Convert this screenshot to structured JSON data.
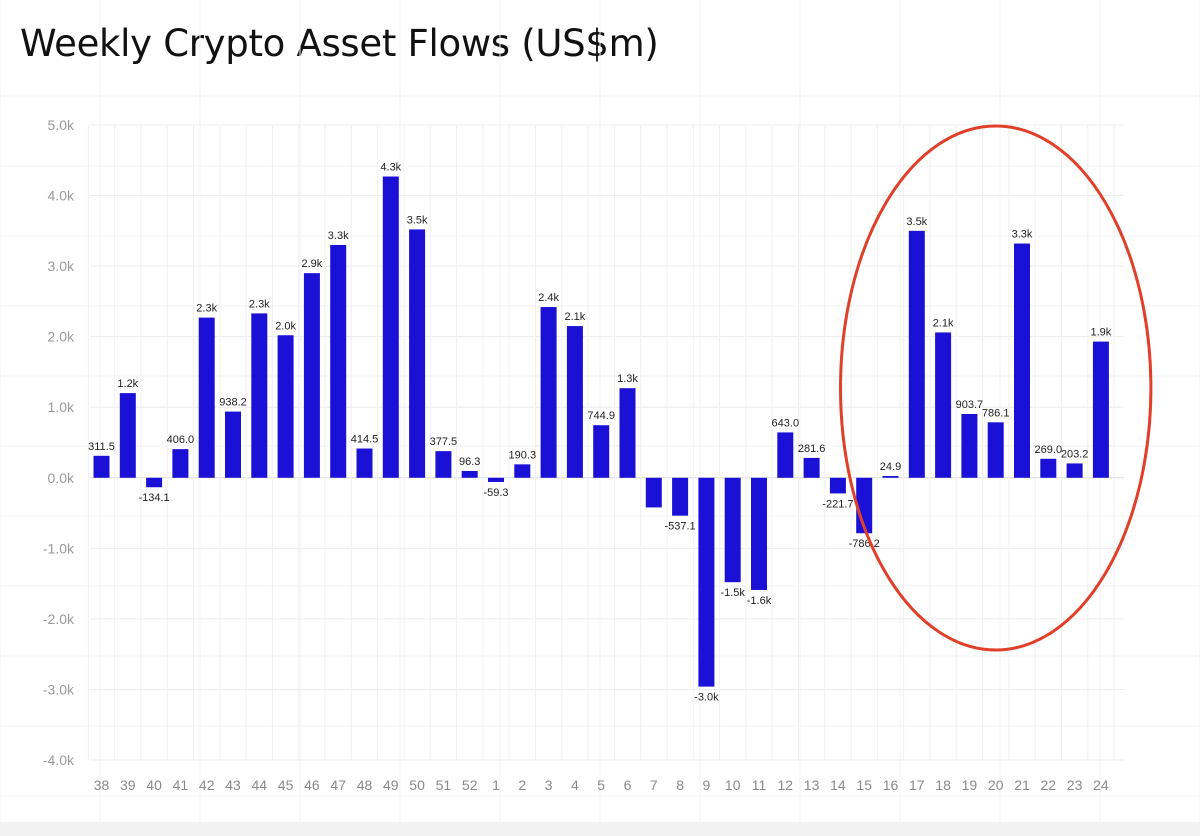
{
  "chart_data": {
    "type": "bar",
    "title": "Weekly Crypto Asset Flows (US$m)",
    "xlabel": "",
    "ylabel": "",
    "ylim": [
      -4000,
      5000
    ],
    "grid": true,
    "legend": "none",
    "bar_color": "#1a10d6",
    "annotation_color": "#e0402a",
    "categories": [
      "38",
      "39",
      "40",
      "41",
      "42",
      "43",
      "44",
      "45",
      "46",
      "47",
      "48",
      "49",
      "50",
      "51",
      "52",
      "1",
      "2",
      "3",
      "4",
      "5",
      "6",
      "7",
      "8",
      "9",
      "10",
      "11",
      "12",
      "13",
      "14",
      "15",
      "16",
      "17",
      "18",
      "19",
      "20",
      "21",
      "22",
      "23",
      "24"
    ],
    "values": [
      311.5,
      1200,
      -134.1,
      406.0,
      2270,
      938.2,
      2330,
      2020,
      2900,
      3300,
      414.5,
      4270,
      3520,
      377.5,
      96.3,
      -59.3,
      190.3,
      2420,
      2150,
      744.9,
      1270,
      -420,
      -537.1,
      -2960,
      -1480,
      -1590,
      643.0,
      281.6,
      -221.7,
      -786.2,
      24.9,
      3500,
      2060,
      903.7,
      786.1,
      3320,
      269.0,
      203.2,
      1930
    ],
    "data_labels": [
      "311.5",
      "1.2k",
      "-134.1",
      "406.0",
      "2.3k",
      "938.2",
      "2.3k",
      "2.0k",
      "2.9k",
      "3.3k",
      "414.5",
      "4.3k",
      "3.5k",
      "377.5",
      "96.3",
      "-59.3",
      "190.3",
      "2.4k",
      "2.1k",
      "744.9",
      "1.3k",
      "",
      "-537.1",
      "-3.0k",
      "-1.5k",
      "-1.6k",
      "643.0",
      "281.6",
      "-221.7",
      "-786.2",
      "24.9",
      "3.5k",
      "2.1k",
      "903.7",
      "786.1",
      "3.3k",
      "269.0",
      "203.2",
      "1.9k"
    ],
    "yticks": [
      "5.0k",
      "4.0k",
      "3.0k",
      "2.0k",
      "1.0k",
      "0.0k",
      "-1.0k",
      "-2.0k",
      "-3.0k",
      "-4.0k"
    ],
    "ytick_values": [
      5000,
      4000,
      3000,
      2000,
      1000,
      0,
      -1000,
      -2000,
      -3000,
      -4000
    ],
    "highlight_ellipse": {
      "from_category": "16",
      "to_category": "24"
    }
  }
}
